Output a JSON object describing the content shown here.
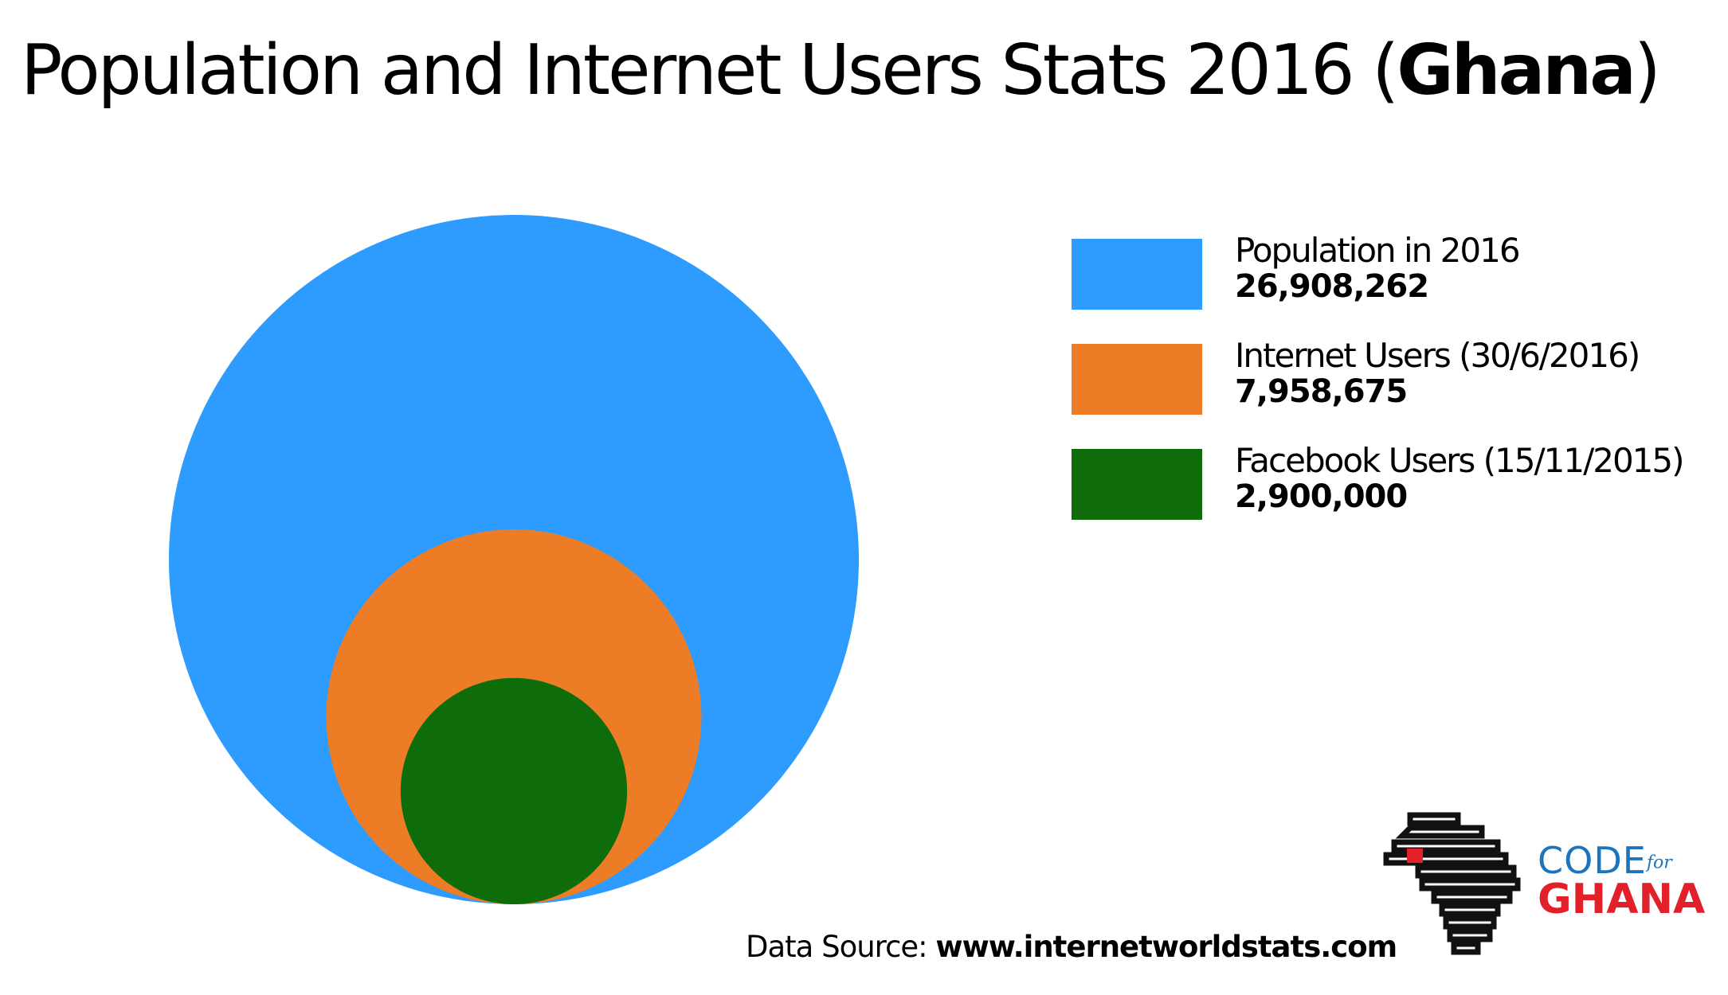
{
  "title": {
    "main": "Population and Internet Users Stats 2016 (",
    "country": "Ghana",
    "close": ")"
  },
  "chart_data": {
    "type": "bubble",
    "title": "Population and Internet Users Stats 2016 (Ghana)",
    "arrangement": "nested circles, bottom-aligned, area proportional to value",
    "series": [
      {
        "name": "Population in 2016",
        "value_text": "26,908,262",
        "value": 26908262,
        "color": "#2e9bff"
      },
      {
        "name": "Internet Users (30/6/2016)",
        "value_text": "7,958,675",
        "value": 7958675,
        "color": "#ec7d26"
      },
      {
        "name": "Facebook Users (15/11/2015)",
        "value_text": "2,900,000",
        "value": 2900000,
        "color": "#0f6c0b"
      }
    ],
    "legend_position": "right"
  },
  "source": {
    "label": "Data Source:",
    "url": "www.internetworldstats.com"
  },
  "logo": {
    "code": "CODE",
    "for": "for",
    "ghana": "GHANA"
  }
}
